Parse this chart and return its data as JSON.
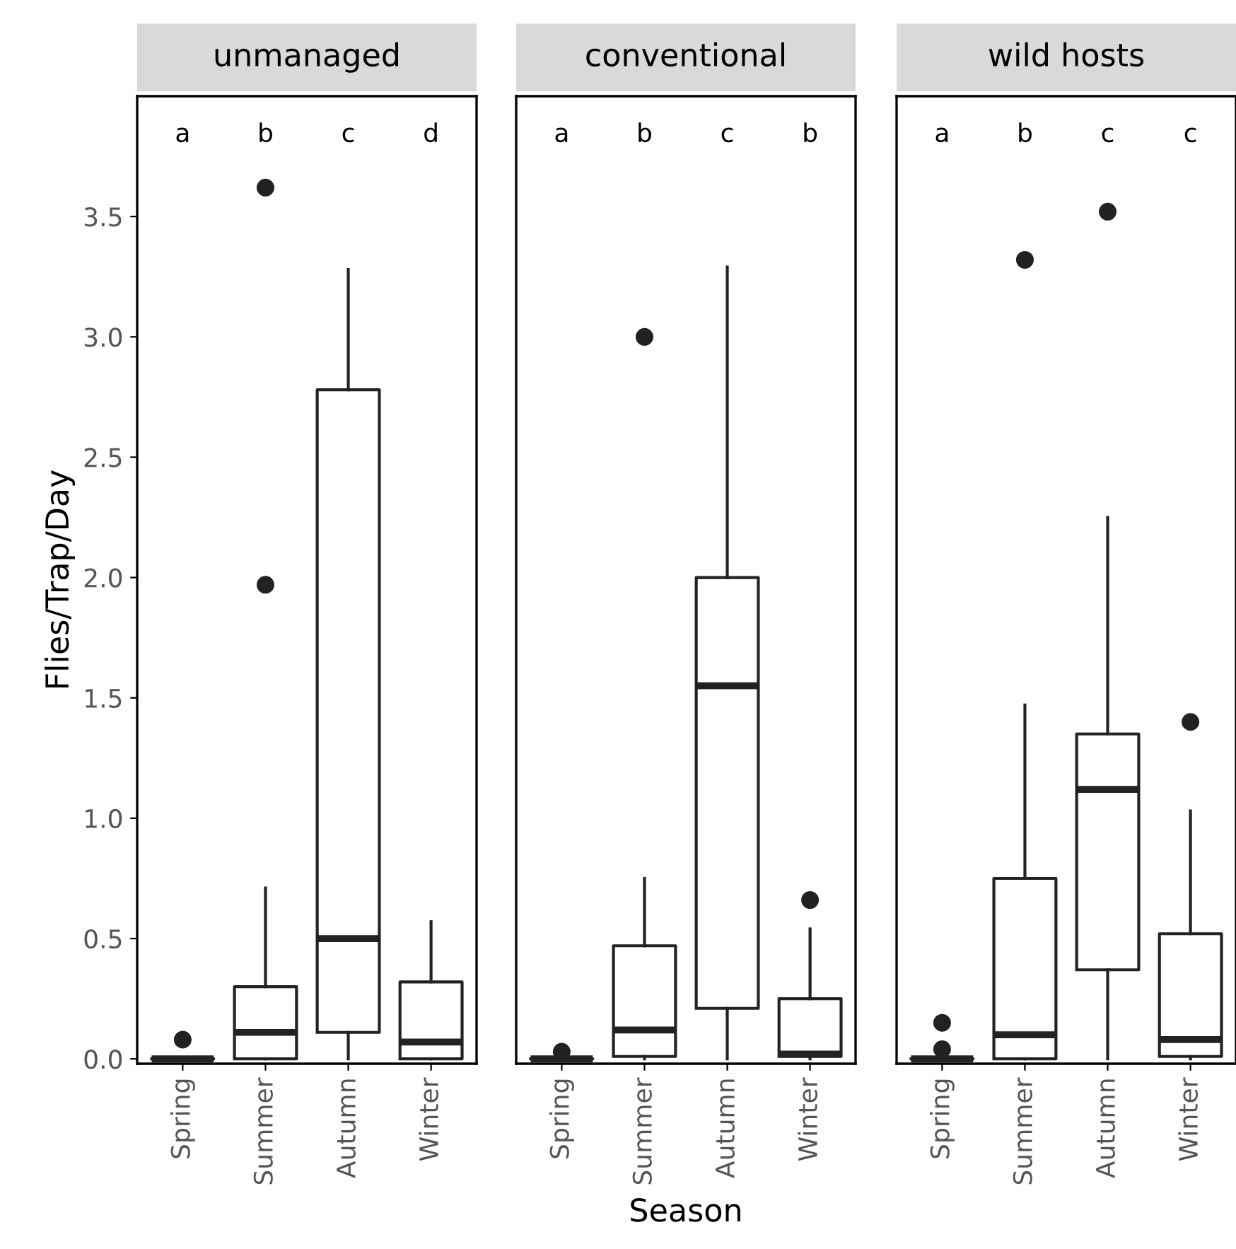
{
  "chart_data": [
    {
      "type": "box",
      "title": "unmanaged",
      "ylabel": "Flies/Trap/Day",
      "categories": [
        "Spring",
        "Summer",
        "Autumn",
        "Winter"
      ],
      "ylim": [
        -0.02,
        4.0
      ],
      "yticks": [
        {
          "value": 0,
          "label": "0.0"
        },
        0.5,
        {
          "value": 1,
          "label": "1.0"
        },
        1.5,
        {
          "value": 2,
          "label": "2.0"
        },
        2.5,
        {
          "value": 3,
          "label": "3.0"
        },
        3.5
      ],
      "grid": false,
      "boxes": [
        {
          "low": 0,
          "q1": 0,
          "median": 0,
          "q3": 0,
          "high": 0,
          "outliers": [
            0.08
          ]
        },
        {
          "low": 0,
          "q1": 0,
          "median": 0.11,
          "q3": 0.3,
          "high": 0.71,
          "outliers": [
            1.97,
            3.62
          ]
        },
        {
          "low": 0,
          "q1": 0.11,
          "median": 0.5,
          "q3": 2.78,
          "high": 3.28
        },
        {
          "low": 0,
          "q1": 0,
          "median": 0.07,
          "q3": 0.32,
          "high": 0.57
        }
      ],
      "annotations": [
        "a",
        "b",
        "c",
        "d"
      ]
    },
    {
      "type": "box",
      "title": "conventional",
      "xlabel": "Season",
      "categories": [
        "Spring",
        "Summer",
        "Autumn",
        "Winter"
      ],
      "ylim": [
        -0.02,
        4.0
      ],
      "tick_labels": "x",
      "grid": false,
      "boxes": [
        {
          "low": 0,
          "q1": 0,
          "median": 0,
          "q3": 0,
          "high": 0,
          "outliers": [
            0.03
          ]
        },
        {
          "low": 0,
          "q1": 0.01,
          "median": 0.12,
          "q3": 0.47,
          "high": 0.75,
          "outliers": [
            3.0
          ]
        },
        {
          "low": 0,
          "q1": 0.21,
          "median": 1.55,
          "q3": 2.0,
          "high": 3.29
        },
        {
          "low": 0,
          "q1": 0.01,
          "median": 0.02,
          "q3": 0.25,
          "high": 0.54,
          "outliers": [
            0.66
          ]
        }
      ],
      "annotations": [
        "a",
        "b",
        "c",
        "b"
      ]
    },
    {
      "type": "box",
      "title": "wild hosts",
      "categories": [
        "Spring",
        "Summer",
        "Autumn",
        "Winter"
      ],
      "ylim": [
        -0.02,
        4.0
      ],
      "tick_labels": "x",
      "grid": false,
      "boxes": [
        {
          "low": 0,
          "q1": 0,
          "median": 0,
          "q3": 0,
          "high": 0,
          "outliers": [
            0.04,
            0.15
          ]
        },
        {
          "low": 0,
          "q1": 0,
          "median": 0.1,
          "q3": 0.75,
          "high": 1.47,
          "outliers": [
            3.32
          ]
        },
        {
          "low": 0,
          "q1": 0.37,
          "median": 1.12,
          "q3": 1.35,
          "high": 2.25,
          "outliers": [
            3.52
          ]
        },
        {
          "low": 0,
          "q1": 0.01,
          "median": 0.08,
          "q3": 0.52,
          "high": 1.03,
          "outliers": [
            1.4
          ]
        }
      ],
      "annotations": [
        "a",
        "b",
        "c",
        "c"
      ]
    }
  ]
}
